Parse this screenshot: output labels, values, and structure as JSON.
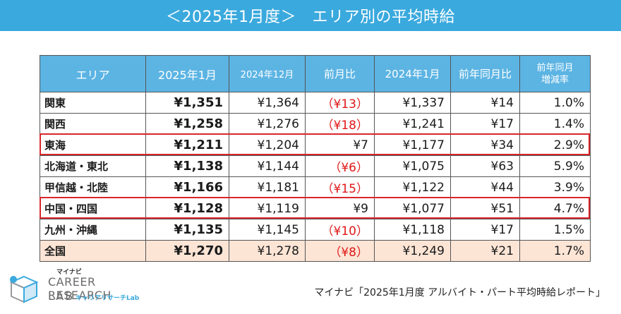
{
  "title": "＜2025年1月度＞　エリア別の平均時給",
  "chart_data": {
    "type": "table",
    "columns": [
      "エリア",
      "2025年1月",
      "2024年12月",
      "前月比",
      "2024年1月",
      "前年同月比",
      "前年同月増減率"
    ],
    "rows": [
      {
        "area": "関東",
        "jan2025": "¥1,351",
        "dec2024": "¥1,364",
        "mom": "（¥13）",
        "jan2024": "¥1,337",
        "yoy": "¥14",
        "yoy_rate": "1.0%",
        "mom_negative": true,
        "highlighted": false,
        "total": false
      },
      {
        "area": "関西",
        "jan2025": "¥1,258",
        "dec2024": "¥1,276",
        "mom": "（¥18）",
        "jan2024": "¥1,241",
        "yoy": "¥17",
        "yoy_rate": "1.4%",
        "mom_negative": true,
        "highlighted": false,
        "total": false
      },
      {
        "area": "東海",
        "jan2025": "¥1,211",
        "dec2024": "¥1,204",
        "mom": "¥7",
        "jan2024": "¥1,177",
        "yoy": "¥34",
        "yoy_rate": "2.9%",
        "mom_negative": false,
        "highlighted": true,
        "total": false
      },
      {
        "area": "北海道・東北",
        "jan2025": "¥1,138",
        "dec2024": "¥1,144",
        "mom": "（¥6）",
        "jan2024": "¥1,075",
        "yoy": "¥63",
        "yoy_rate": "5.9%",
        "mom_negative": true,
        "highlighted": false,
        "total": false
      },
      {
        "area": "甲信越・北陸",
        "jan2025": "¥1,166",
        "dec2024": "¥1,181",
        "mom": "（¥15）",
        "jan2024": "¥1,122",
        "yoy": "¥44",
        "yoy_rate": "3.9%",
        "mom_negative": true,
        "highlighted": false,
        "total": false
      },
      {
        "area": "中国・四国",
        "jan2025": "¥1,128",
        "dec2024": "¥1,119",
        "mom": "¥9",
        "jan2024": "¥1,077",
        "yoy": "¥51",
        "yoy_rate": "4.7%",
        "mom_negative": false,
        "highlighted": true,
        "total": false
      },
      {
        "area": "九州・沖縄",
        "jan2025": "¥1,135",
        "dec2024": "¥1,145",
        "mom": "（¥10）",
        "jan2024": "¥1,118",
        "yoy": "¥17",
        "yoy_rate": "1.5%",
        "mom_negative": true,
        "highlighted": false,
        "total": false
      },
      {
        "area": "全国",
        "jan2025": "¥1,270",
        "dec2024": "¥1,278",
        "mom": "（¥8）",
        "jan2024": "¥1,249",
        "yoy": "¥21",
        "yoy_rate": "1.7%",
        "mom_negative": true,
        "highlighted": false,
        "total": true
      }
    ]
  },
  "header": {
    "area": "エリア",
    "jan2025": "2025年1月",
    "dec2024": "2024年12月",
    "mom": "前月比",
    "jan2024": "2024年1月",
    "yoy": "前年同月比",
    "yoy_rate_line1": "前年同月",
    "yoy_rate_line2": "増減率"
  },
  "logo": {
    "small": "マイナビ",
    "main": "CAREER RESEARCH",
    "lab": "LAB",
    "sub": "キャリアリサーチLab"
  },
  "source": "マイナビ「2025年1月度 アルバイト・パート平均時給レポート」",
  "colors": {
    "header_bg": "#5cb4e3",
    "title_bg": "#3aa9dd",
    "negative": "#e01818",
    "highlight_border": "#d9262c",
    "total_row_bg": "#fde5d6"
  }
}
